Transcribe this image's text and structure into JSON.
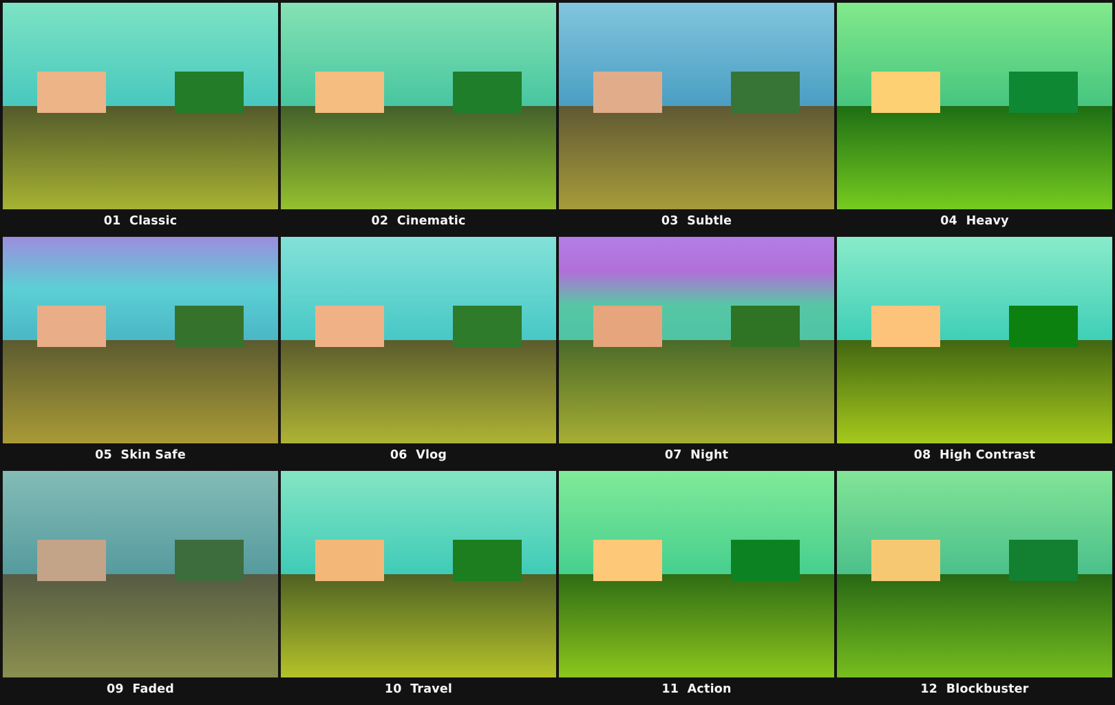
{
  "presets": [
    {
      "label": "01  Classic",
      "sky": [
        "#7de3c4",
        "#48c8be"
      ],
      "ground": [
        "#535a2c",
        "#a6b332"
      ],
      "skin": "#edb487",
      "foliage": "#237c28"
    },
    {
      "label": "02  Cinematic",
      "sky": [
        "#85e2b4",
        "#47c6a0"
      ],
      "ground": [
        "#43602b",
        "#94c12e"
      ],
      "skin": "#f5bd7f",
      "foliage": "#1f7e2a"
    },
    {
      "label": "03  Subtle",
      "sky": [
        "#82c5de",
        "#4a9ec3"
      ],
      "ground": [
        "#5f5934",
        "#a89b3a"
      ],
      "skin": "#e1ac8a",
      "foliage": "#377537"
    },
    {
      "label": "04  Heavy",
      "sky": [
        "#83e98c",
        "#46c57f"
      ],
      "ground": [
        "#1d6e14",
        "#77cb1f"
      ],
      "skin": "#fed074",
      "foliage": "#0f8833"
    },
    {
      "label": "05  Skin Safe",
      "sky": [
        "#9c8ddf",
        "#5ccfd4",
        "#4bb7c5"
      ],
      "ground": [
        "#5b5b30",
        "#a99a36"
      ],
      "skin": "#e9ae87",
      "foliage": "#35732d"
    },
    {
      "label": "06  Vlog",
      "sky": [
        "#83e1d8",
        "#47c8c6"
      ],
      "ground": [
        "#5a5b2c",
        "#aeb434"
      ],
      "skin": "#f0b186",
      "foliage": "#2e7b2b"
    },
    {
      "label": "07  Night",
      "sky": [
        "#b27ee6",
        "#b26fd9",
        "#56c7a4",
        "#4fc3a4"
      ],
      "ground": [
        "#4b6a2a",
        "#a6ae33"
      ],
      "skin": "#e6a57c",
      "foliage": "#2e7424"
    },
    {
      "label": "08  High Contrast",
      "sky": [
        "#89ebca",
        "#3fcfb7"
      ],
      "ground": [
        "#426611",
        "#a6ca1c"
      ],
      "skin": "#fdc37a",
      "foliage": "#0d8110"
    },
    {
      "label": "09  Faded",
      "sky": [
        "#84bcb6",
        "#559b9e"
      ],
      "ground": [
        "#565b42",
        "#8b904f"
      ],
      "skin": "#c3a488",
      "foliage": "#3d6c3d"
    },
    {
      "label": "10  Travel",
      "sky": [
        "#84e5c3",
        "#3fcbb8"
      ],
      "ground": [
        "#4f6124",
        "#b4c329"
      ],
      "skin": "#f3b878",
      "foliage": "#1d7e20"
    },
    {
      "label": "11  Action",
      "sky": [
        "#81ea98",
        "#46cf8e"
      ],
      "ground": [
        "#2f6c14",
        "#8cc61c"
      ],
      "skin": "#fdc877",
      "foliage": "#0d8222"
    },
    {
      "label": "12  Blockbuster",
      "sky": [
        "#82e497",
        "#4bc08b"
      ],
      "ground": [
        "#276714",
        "#77be1f"
      ],
      "skin": "#f7c872",
      "foliage": "#128030"
    }
  ]
}
